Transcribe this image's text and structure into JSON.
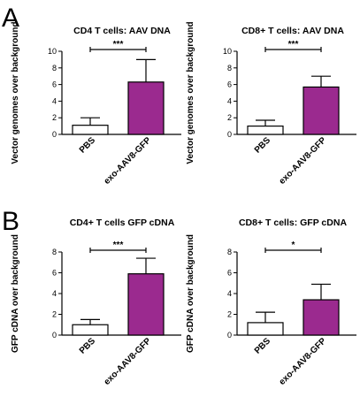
{
  "panels": [
    {
      "letter": "A"
    },
    {
      "letter": "B"
    }
  ],
  "colors": {
    "control_bar": "#ffffff",
    "treated_bar": "#9b2a8f",
    "outline": "#000000"
  },
  "chart_data": [
    {
      "type": "bar",
      "title": "CD4 T cells: AAV DNA",
      "ylabel": "Vector genomes over background",
      "xlabel": "",
      "categories": [
        "PBS",
        "exo-AAV8-GFP"
      ],
      "values": [
        1.1,
        6.3
      ],
      "errors": [
        0.9,
        2.7
      ],
      "ylim": [
        0,
        10
      ],
      "yticks": [
        0,
        2,
        4,
        6,
        8,
        10
      ],
      "significance": "***",
      "grid": false
    },
    {
      "type": "bar",
      "title": "CD8+ T cells: AAV DNA",
      "ylabel": "Vector genomes over background",
      "xlabel": "",
      "categories": [
        "PBS",
        "exo-AAV8-GFP"
      ],
      "values": [
        1.0,
        5.7
      ],
      "errors": [
        0.7,
        1.3
      ],
      "ylim": [
        0,
        10
      ],
      "yticks": [
        0,
        2,
        4,
        6,
        8,
        10
      ],
      "significance": "***",
      "grid": false
    },
    {
      "type": "bar",
      "title": "CD4+ T cells GFP cDNA",
      "ylabel": "GFP cDNA over background",
      "xlabel": "",
      "categories": [
        "PBS",
        "exo-AAV8-GFP"
      ],
      "values": [
        1.0,
        5.9
      ],
      "errors": [
        0.5,
        1.5
      ],
      "ylim": [
        0,
        8
      ],
      "yticks": [
        0,
        2,
        4,
        6,
        8
      ],
      "significance": "***",
      "grid": false
    },
    {
      "type": "bar",
      "title": "CD8+ T cells: GFP cDNA",
      "ylabel": "GFP cDNA over background",
      "xlabel": "",
      "categories": [
        "PBS",
        "exo-AAV8-GFP"
      ],
      "values": [
        1.2,
        3.4
      ],
      "errors": [
        1.0,
        1.5
      ],
      "ylim": [
        0,
        8
      ],
      "yticks": [
        0,
        2,
        4,
        6,
        8
      ],
      "significance": "*",
      "grid": false
    }
  ]
}
